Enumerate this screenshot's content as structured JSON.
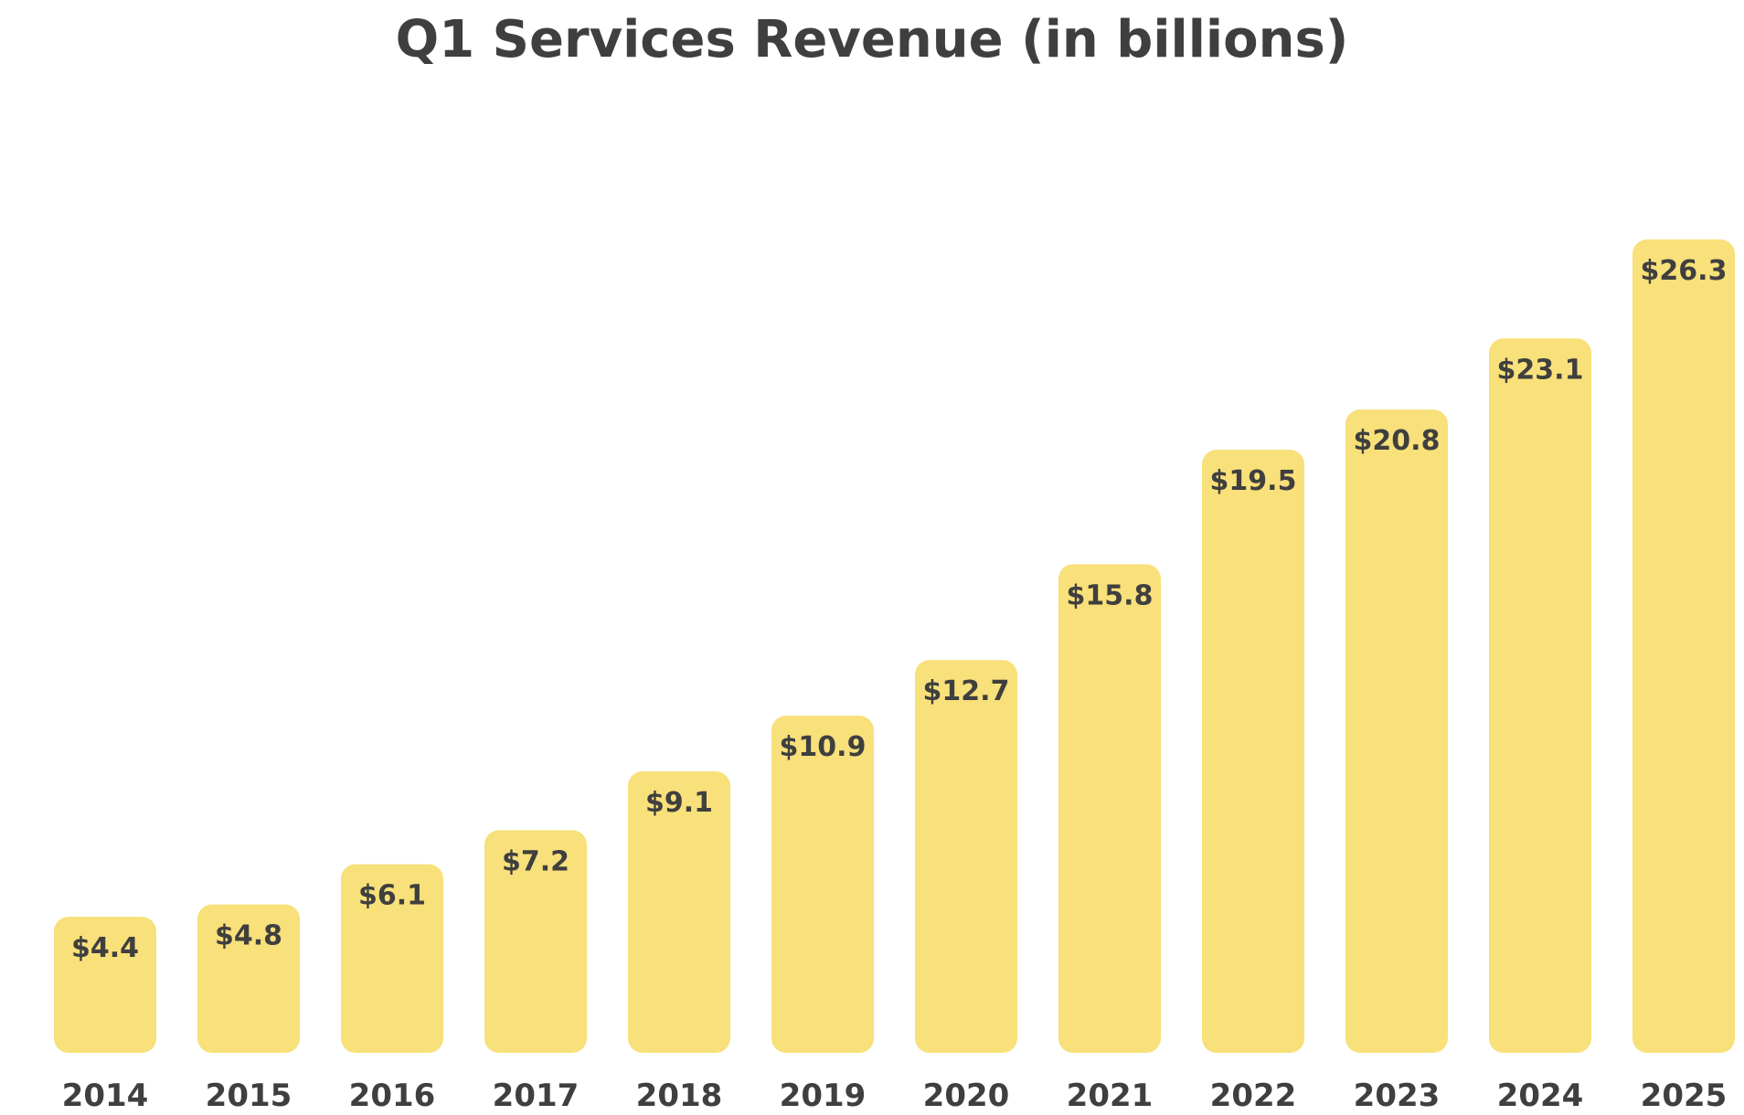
{
  "chart_data": {
    "type": "bar",
    "title": "Q1 Services Revenue (in billions)",
    "xlabel": "",
    "ylabel": "",
    "categories": [
      "2014",
      "2015",
      "2016",
      "2017",
      "2018",
      "2019",
      "2020",
      "2021",
      "2022",
      "2023",
      "2024",
      "2025"
    ],
    "values": [
      4.4,
      4.8,
      6.1,
      7.2,
      9.1,
      10.9,
      12.7,
      15.8,
      19.5,
      20.8,
      23.1,
      26.3
    ],
    "data_labels": [
      "$4.4",
      "$4.8",
      "$6.1",
      "$7.2",
      "$9.1",
      "$10.9",
      "$12.7",
      "$15.8",
      "$19.5",
      "$20.8",
      "$23.1",
      "$26.3"
    ],
    "ylim": [
      0,
      26.3
    ],
    "grid": false,
    "legend": "none",
    "colors": {
      "bar": "#f8e07a",
      "text": "#3f3f3f"
    }
  }
}
